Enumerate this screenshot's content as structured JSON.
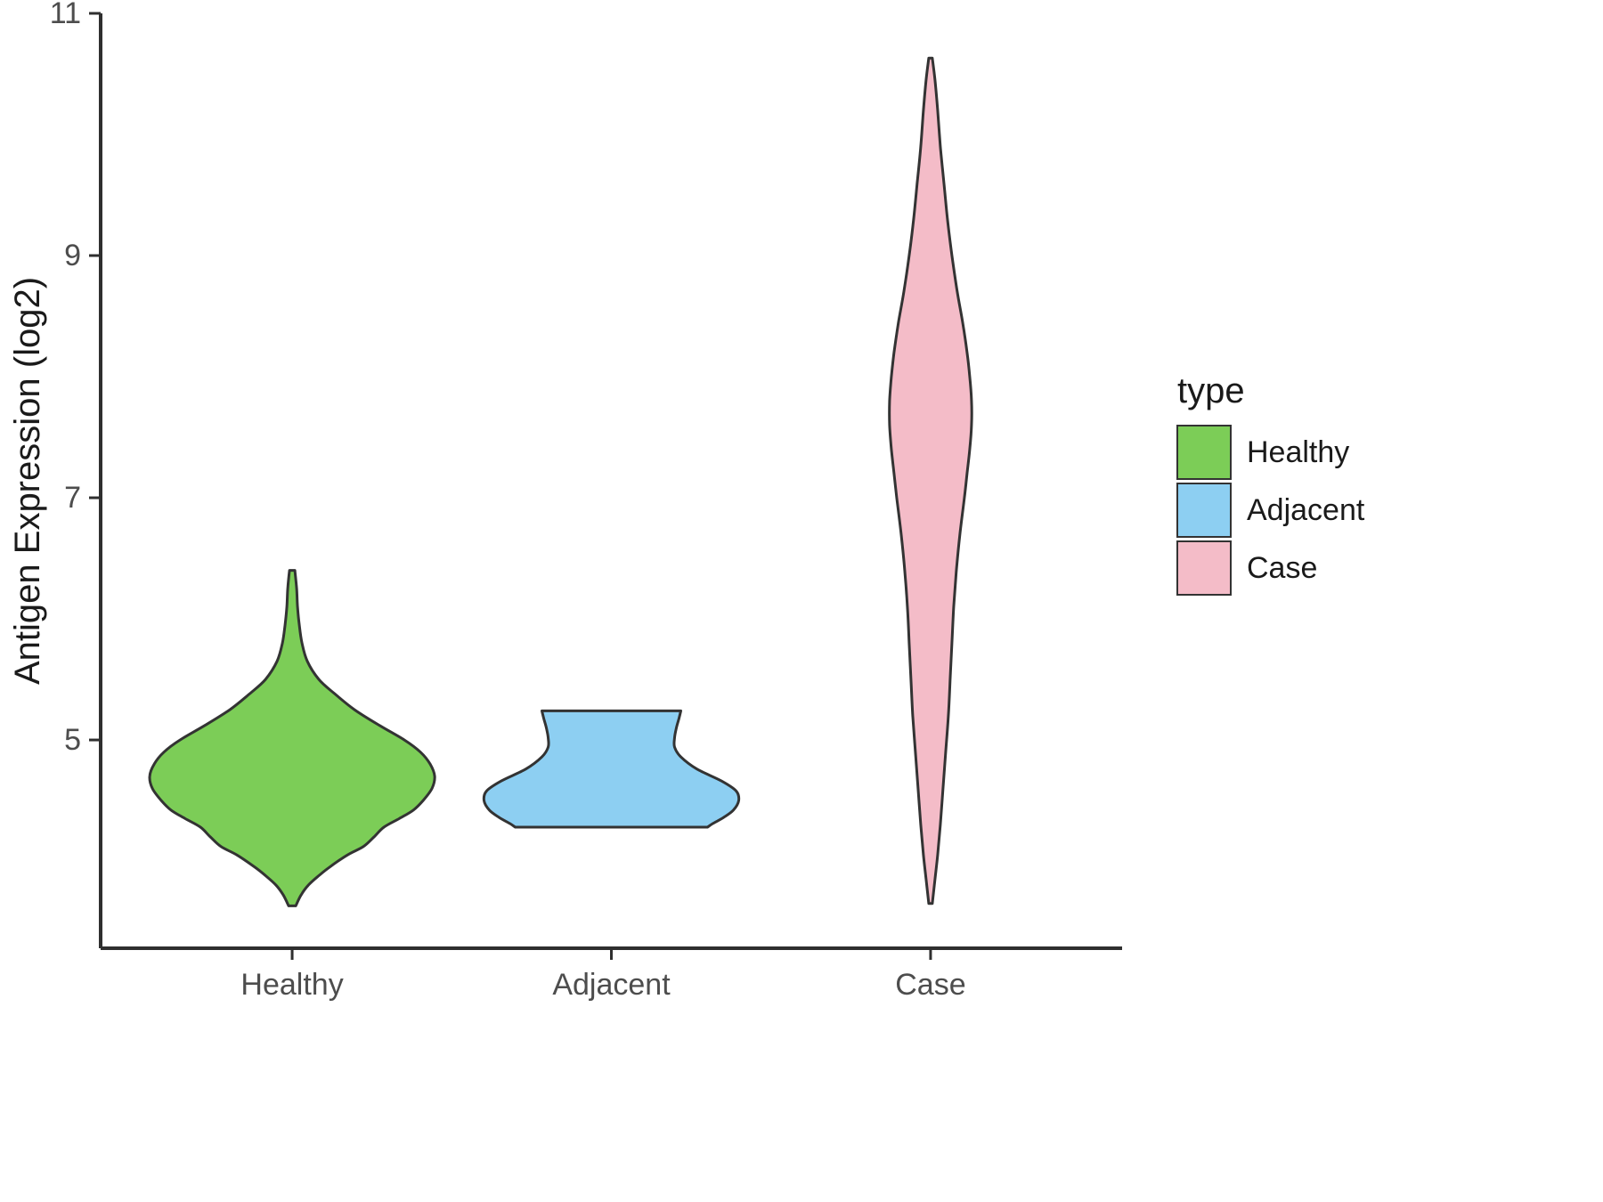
{
  "chart_data": {
    "type": "violin",
    "title": "",
    "xlabel": "",
    "ylabel": "Antigen Expression (log2)",
    "categories": [
      "Healthy",
      "Adjacent",
      "Case"
    ],
    "y_ticks": [
      5,
      7,
      9,
      11
    ],
    "ylim": [
      3.28,
      11.0
    ],
    "grid": false,
    "legend": {
      "title": "type",
      "position": "right",
      "entries": [
        {
          "label": "Healthy",
          "color": "#7CCD57"
        },
        {
          "label": "Adjacent",
          "color": "#8DCFF2"
        },
        {
          "label": "Case",
          "color": "#F4BCC8"
        }
      ]
    },
    "series": [
      {
        "name": "Healthy",
        "color": "#7CCD57",
        "profile": [
          [
            6.4,
            3
          ],
          [
            6.25,
            5
          ],
          [
            6.1,
            6
          ],
          [
            5.95,
            8
          ],
          [
            5.8,
            11
          ],
          [
            5.65,
            17
          ],
          [
            5.5,
            30
          ],
          [
            5.38,
            48
          ],
          [
            5.25,
            70
          ],
          [
            5.12,
            98
          ],
          [
            5.0,
            126
          ],
          [
            4.9,
            144
          ],
          [
            4.8,
            155
          ],
          [
            4.7,
            160
          ],
          [
            4.6,
            157
          ],
          [
            4.5,
            147
          ],
          [
            4.42,
            136
          ],
          [
            4.35,
            120
          ],
          [
            4.28,
            103
          ],
          [
            4.2,
            92
          ],
          [
            4.12,
            80
          ],
          [
            4.05,
            62
          ],
          [
            3.95,
            42
          ],
          [
            3.88,
            30
          ],
          [
            3.8,
            18
          ],
          [
            3.72,
            10
          ],
          [
            3.63,
            4
          ]
        ]
      },
      {
        "name": "Adjacent",
        "color": "#8DCFF2",
        "profile": [
          [
            5.24,
            78
          ],
          [
            5.18,
            76
          ],
          [
            5.1,
            73
          ],
          [
            5.02,
            71
          ],
          [
            4.94,
            71
          ],
          [
            4.86,
            78
          ],
          [
            4.76,
            96
          ],
          [
            4.66,
            124
          ],
          [
            4.58,
            140
          ],
          [
            4.5,
            143
          ],
          [
            4.42,
            137
          ],
          [
            4.36,
            126
          ],
          [
            4.31,
            114
          ],
          [
            4.28,
            108
          ]
        ]
      },
      {
        "name": "Case",
        "color": "#F4BCC8",
        "profile": [
          [
            10.63,
            2
          ],
          [
            10.45,
            5
          ],
          [
            10.2,
            8
          ],
          [
            9.9,
            11
          ],
          [
            9.6,
            15
          ],
          [
            9.3,
            19
          ],
          [
            9.0,
            24
          ],
          [
            8.7,
            30
          ],
          [
            8.45,
            36
          ],
          [
            8.2,
            41
          ],
          [
            8.0,
            44
          ],
          [
            7.8,
            46
          ],
          [
            7.6,
            46
          ],
          [
            7.4,
            44
          ],
          [
            7.2,
            41
          ],
          [
            7.0,
            38
          ],
          [
            6.7,
            33
          ],
          [
            6.4,
            29
          ],
          [
            6.1,
            26
          ],
          [
            5.8,
            24
          ],
          [
            5.5,
            22
          ],
          [
            5.2,
            20
          ],
          [
            4.9,
            17
          ],
          [
            4.6,
            14
          ],
          [
            4.3,
            11
          ],
          [
            4.05,
            8
          ],
          [
            3.85,
            5
          ],
          [
            3.65,
            2
          ]
        ]
      }
    ]
  }
}
